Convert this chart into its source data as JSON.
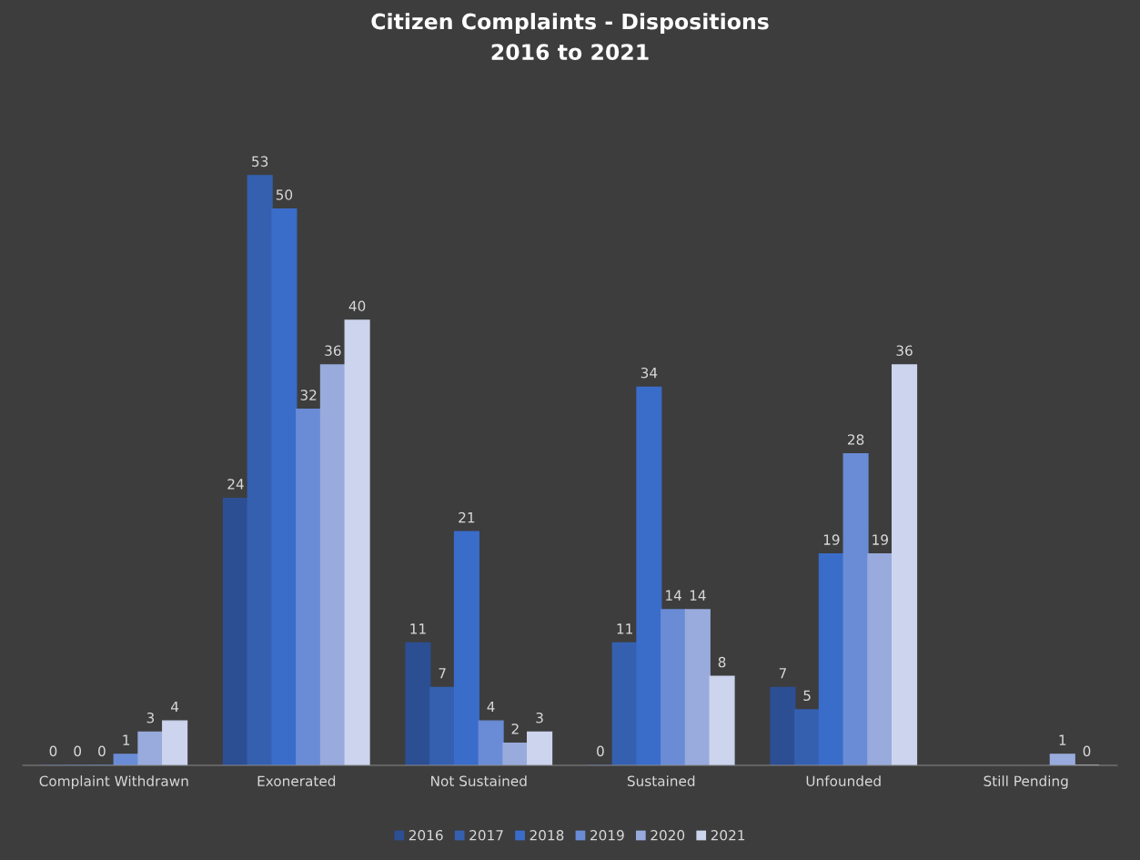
{
  "chart_data": {
    "type": "bar",
    "title": "Citizen Complaints - Dispositions\n2016 to 2021",
    "categories": [
      "Complaint Withdrawn",
      "Exonerated",
      "Not Sustained",
      "Sustained",
      "Unfounded",
      "Still Pending"
    ],
    "series": [
      {
        "name": "2016",
        "color": "#2c4f94",
        "values": [
          0,
          24,
          11,
          0,
          7,
          null
        ]
      },
      {
        "name": "2017",
        "color": "#3560b0",
        "values": [
          0,
          53,
          7,
          11,
          5,
          null
        ]
      },
      {
        "name": "2018",
        "color": "#3a6cca",
        "values": [
          0,
          50,
          21,
          34,
          19,
          null
        ]
      },
      {
        "name": "2019",
        "color": "#6a8cd6",
        "values": [
          1,
          32,
          4,
          14,
          28,
          null
        ]
      },
      {
        "name": "2020",
        "color": "#98abdc",
        "values": [
          3,
          36,
          2,
          14,
          19,
          1
        ]
      },
      {
        "name": "2021",
        "color": "#ccd4ee",
        "values": [
          4,
          40,
          3,
          8,
          36,
          0
        ]
      }
    ],
    "data_labels": true,
    "legend": "bottom",
    "grid": false
  }
}
